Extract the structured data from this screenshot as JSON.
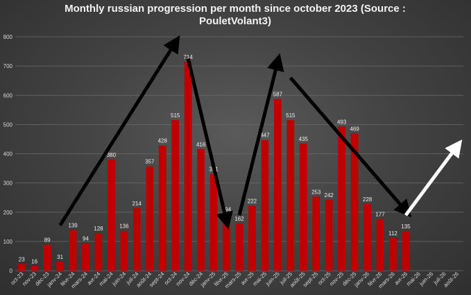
{
  "chart_data": {
    "type": "bar",
    "title_lines": [
      "Monthly russian progression per month since october 2023 (Source :",
      "PouletVolant3)"
    ],
    "categories": [
      "oct-23",
      "nov-23",
      "déc-23",
      "janv-24",
      "févr-24",
      "mars-24",
      "avr-24",
      "mai-24",
      "juin-24",
      "juil-24",
      "août-24",
      "sept-24",
      "oct-24",
      "nov-24",
      "déc-24",
      "janv-25",
      "févr-25",
      "mars-25",
      "avr-25",
      "mai-25",
      "juin-25",
      "juil-25",
      "août-25",
      "sept-25",
      "oct-25",
      "nov-25",
      "déc-25",
      "janv-26",
      "févr-26",
      "mars-26",
      "avr-26",
      "mai-26",
      "juin-26",
      "juil-26",
      "août-26"
    ],
    "values": [
      23,
      16,
      89,
      31,
      139,
      94,
      128,
      380,
      136,
      214,
      357,
      428,
      515,
      714,
      416,
      331,
      194,
      162,
      222,
      447,
      587,
      515,
      435,
      253,
      242,
      493,
      469,
      228,
      177,
      112,
      135,
      null,
      null,
      null,
      null
    ],
    "ylim": [
      0,
      800
    ],
    "yticks": [
      0,
      100,
      200,
      300,
      400,
      500,
      600,
      700,
      800
    ],
    "grid": true,
    "bar_color": "#c00000",
    "annotations": [
      {
        "kind": "arrow",
        "color": "#000000",
        "from": [
          "janv-24",
          155
        ],
        "to": [
          "oct-24",
          780
        ]
      },
      {
        "kind": "arrow",
        "color": "#000000",
        "from": [
          "nov-24",
          725
        ],
        "to": [
          "févr-25",
          170
        ]
      },
      {
        "kind": "arrow",
        "color": "#000000",
        "from": [
          "mars-25",
          190
        ],
        "to": [
          "juin-25",
          715
        ]
      },
      {
        "kind": "arrow",
        "color": "#000000",
        "from": [
          "juil-25",
          660
        ],
        "to": [
          "avr-26",
          205
        ]
      },
      {
        "kind": "arrow",
        "color": "#ffffff",
        "from": [
          "avr-26",
          190
        ],
        "to": [
          "août-26",
          425
        ]
      }
    ]
  }
}
